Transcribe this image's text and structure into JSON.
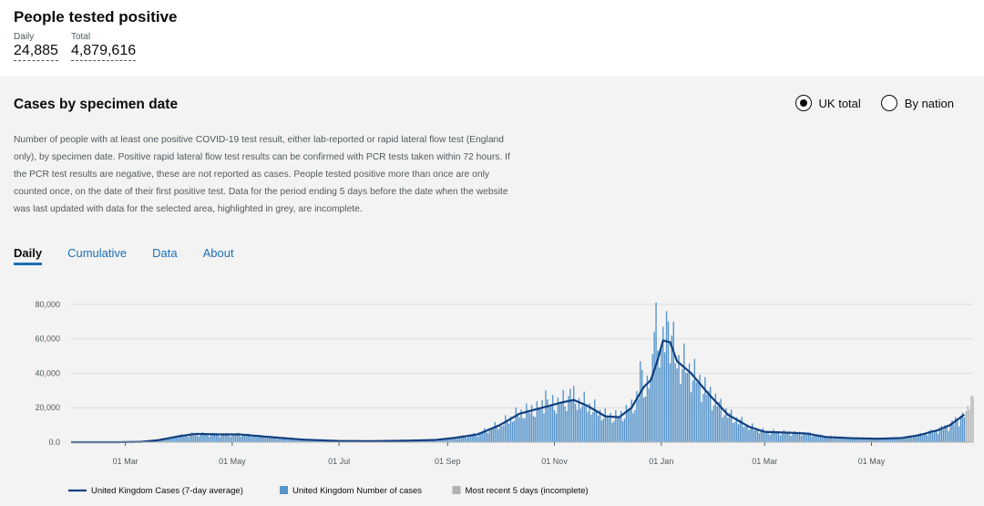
{
  "headline": {
    "title": "People tested positive",
    "daily_label": "Daily",
    "daily_value": "24,885",
    "total_label": "Total",
    "total_value": "4,879,616"
  },
  "card": {
    "title": "Cases by specimen date",
    "description": "Number of people with at least one positive COVID-19 test result, either lab-reported or rapid lateral flow test (England only), by specimen date. Positive rapid lateral flow test results can be confirmed with PCR tests taken within 72 hours. If the PCR test results are negative, these are not reported as cases. People tested positive more than once are only counted once, on the date of their first positive test. Data for the period ending 5 days before the date when the website was last updated with data for the selected area, highlighted in grey, are incomplete.",
    "radio_uk": "UK total",
    "radio_nation": "By nation",
    "tabs": [
      "Daily",
      "Cumulative",
      "Data",
      "About"
    ]
  },
  "colors": {
    "line": "#12407f",
    "bar": "#5694ca",
    "incomplete": "#b1b4b6"
  },
  "chart_data": {
    "type": "bar",
    "yticks": [
      0,
      20000,
      40000,
      60000,
      80000
    ],
    "ytick_labels": [
      "0.0",
      "20,000",
      "40,000",
      "60,000",
      "80,000"
    ],
    "ylim": [
      0,
      82000
    ],
    "xtick_labels": [
      "01 Mar",
      "01 May",
      "01 Jul",
      "01 Sep",
      "01 Nov",
      "01 Jan",
      "01 Mar",
      "01 May"
    ],
    "x_start": "2020-01-30",
    "x_end": "2021-06-28",
    "xtick_dates": [
      "2020-03-01",
      "2020-05-01",
      "2020-07-01",
      "2020-09-01",
      "2020-11-01",
      "2021-01-01",
      "2021-03-01",
      "2021-05-01"
    ],
    "bar_anchor_points": [
      [
        "2020-01-30",
        0
      ],
      [
        "2020-02-25",
        0
      ],
      [
        "2020-03-10",
        200
      ],
      [
        "2020-03-20",
        1200
      ],
      [
        "2020-04-01",
        3500
      ],
      [
        "2020-04-10",
        4800
      ],
      [
        "2020-04-25",
        4500
      ],
      [
        "2020-05-05",
        4500
      ],
      [
        "2020-05-20",
        3200
      ],
      [
        "2020-06-10",
        1500
      ],
      [
        "2020-07-01",
        700
      ],
      [
        "2020-07-20",
        600
      ],
      [
        "2020-08-10",
        900
      ],
      [
        "2020-08-25",
        1300
      ],
      [
        "2020-09-05",
        2500
      ],
      [
        "2020-09-18",
        4500
      ],
      [
        "2020-10-01",
        10000
      ],
      [
        "2020-10-12",
        16500
      ],
      [
        "2020-10-25",
        20000
      ],
      [
        "2020-11-05",
        23000
      ],
      [
        "2020-11-12",
        24500
      ],
      [
        "2020-11-20",
        21000
      ],
      [
        "2020-11-30",
        15000
      ],
      [
        "2020-12-08",
        14500
      ],
      [
        "2020-12-15",
        20000
      ],
      [
        "2020-12-22",
        32000
      ],
      [
        "2020-12-26",
        36000
      ],
      [
        "2020-12-30",
        48000
      ],
      [
        "2021-01-02",
        59000
      ],
      [
        "2021-01-06",
        58000
      ],
      [
        "2021-01-10",
        47000
      ],
      [
        "2021-01-18",
        40000
      ],
      [
        "2021-01-28",
        28000
      ],
      [
        "2021-02-08",
        16000
      ],
      [
        "2021-02-20",
        9000
      ],
      [
        "2021-03-01",
        6000
      ],
      [
        "2021-03-15",
        5500
      ],
      [
        "2021-03-25",
        5000
      ],
      [
        "2021-04-05",
        3000
      ],
      [
        "2021-04-20",
        2300
      ],
      [
        "2021-05-05",
        2000
      ],
      [
        "2021-05-18",
        2400
      ],
      [
        "2021-05-28",
        4000
      ],
      [
        "2021-06-08",
        7000
      ],
      [
        "2021-06-15",
        10000
      ],
      [
        "2021-06-23",
        16000
      ],
      [
        "2021-06-28",
        18000
      ]
    ],
    "peak_bars": [
      [
        "2020-12-29",
        81000
      ],
      [
        "2020-12-28",
        64000
      ],
      [
        "2021-01-04",
        76000
      ],
      [
        "2021-01-05",
        70000
      ],
      [
        "2021-01-07",
        62000
      ],
      [
        "2020-12-20",
        47000
      ],
      [
        "2020-10-27",
        30000
      ],
      [
        "2020-11-10",
        31000
      ],
      [
        "2021-01-02",
        67000
      ],
      [
        "2020-12-21",
        42000
      ]
    ],
    "incomplete_bars": [
      [
        "2021-06-24",
        18000
      ],
      [
        "2021-06-25",
        21000
      ],
      [
        "2021-06-26",
        19000
      ],
      [
        "2021-06-27",
        27000
      ],
      [
        "2021-06-28",
        26500
      ]
    ],
    "legend": [
      {
        "type": "line",
        "label": "United Kingdom Cases (7-day average)"
      },
      {
        "type": "bar",
        "label": "United Kingdom Number of cases"
      },
      {
        "type": "incomplete",
        "label": "Most recent 5 days (incomplete)"
      }
    ]
  }
}
